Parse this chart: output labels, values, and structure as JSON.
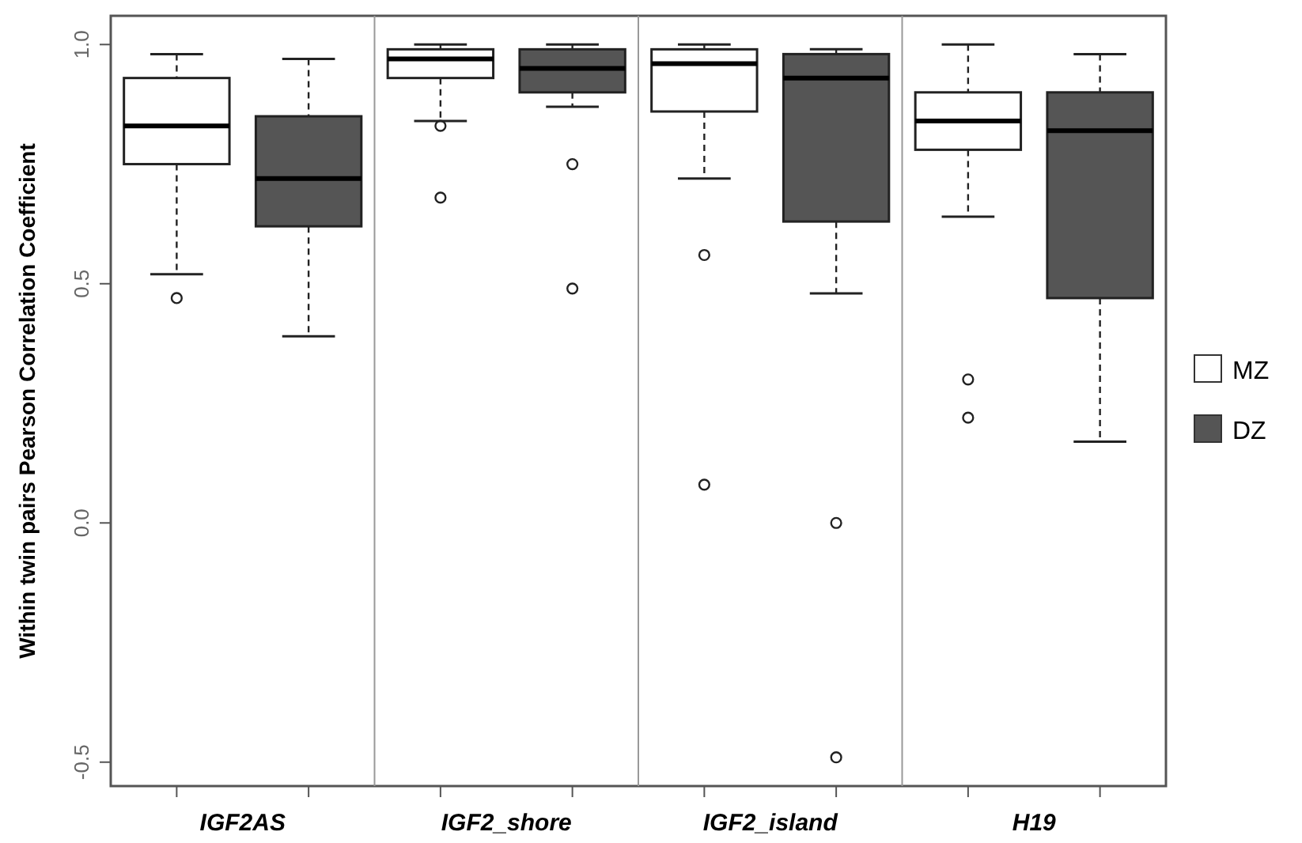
{
  "chart_data": {
    "type": "box",
    "ylabel": "Within twin pairs Pearson Correlation Coefficient",
    "categories": [
      "IGF2AS",
      "IGF2_shore",
      "IGF2_island",
      "H19"
    ],
    "ylim": [
      -0.55,
      1.06
    ],
    "yticks": [
      -0.5,
      {
        "value": 0,
        "label": "0.0"
      },
      0.5,
      {
        "value": 1,
        "label": "1.0"
      }
    ],
    "legend": "right",
    "series": [
      {
        "name": "MZ",
        "color": "#ffffff",
        "boxes": [
          {
            "low": 0.52,
            "q1": 0.75,
            "median": 0.83,
            "q3": 0.93,
            "high": 0.98,
            "outliers": [
              0.47
            ]
          },
          {
            "low": 0.84,
            "q1": 0.93,
            "median": 0.97,
            "q3": 0.99,
            "high": 1.0,
            "outliers": [
              0.83,
              0.68
            ]
          },
          {
            "low": 0.72,
            "q1": 0.86,
            "median": 0.96,
            "q3": 0.99,
            "high": 1.0,
            "outliers": [
              0.56,
              0.08
            ]
          },
          {
            "low": 0.64,
            "q1": 0.78,
            "median": 0.84,
            "q3": 0.9,
            "high": 1.0,
            "outliers": [
              0.3,
              0.22
            ]
          }
        ]
      },
      {
        "name": "DZ",
        "color": "#555555",
        "boxes": [
          {
            "low": 0.39,
            "q1": 0.62,
            "median": 0.72,
            "q3": 0.85,
            "high": 0.97
          },
          {
            "low": 0.87,
            "q1": 0.9,
            "median": 0.95,
            "q3": 0.99,
            "high": 1.0,
            "outliers": [
              0.75,
              0.49
            ]
          },
          {
            "low": 0.48,
            "q1": 0.63,
            "median": 0.93,
            "q3": 0.98,
            "high": 0.99,
            "outliers": [
              0.0,
              -0.49
            ]
          },
          {
            "low": 0.17,
            "q1": 0.47,
            "median": 0.82,
            "q3": 0.9,
            "high": 0.98
          }
        ]
      }
    ]
  }
}
